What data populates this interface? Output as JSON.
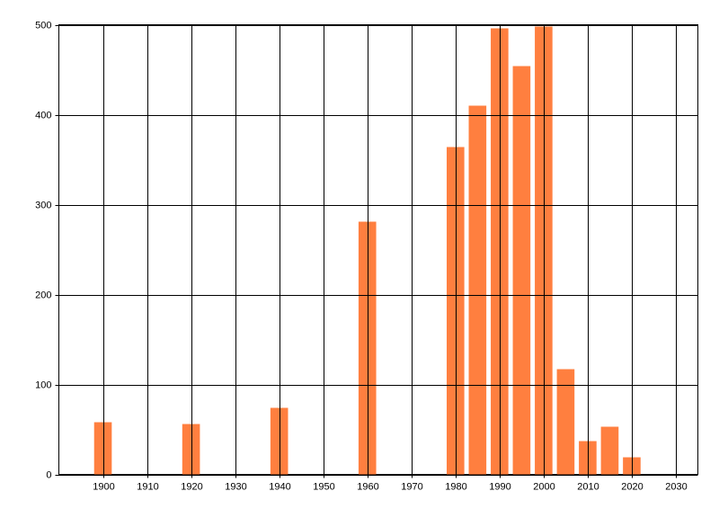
{
  "chart_data": {
    "type": "bar",
    "x": [
      1900,
      1920,
      1940,
      1960,
      1980,
      1985,
      1990,
      1995,
      2000,
      2005,
      2010,
      2015,
      2020
    ],
    "values": [
      58,
      56,
      74,
      281,
      364,
      410,
      496,
      454,
      498,
      117,
      37,
      53,
      19
    ],
    "color": "#ff7f3f",
    "xlim": [
      1890,
      2035
    ],
    "xticks": [
      1900,
      1910,
      1920,
      1930,
      1940,
      1950,
      1960,
      1970,
      1980,
      1990,
      2000,
      2010,
      2020,
      2030
    ],
    "ylim": [
      0,
      500
    ],
    "yticks": [
      0,
      100,
      200,
      300,
      400,
      500
    ],
    "grid": true
  }
}
